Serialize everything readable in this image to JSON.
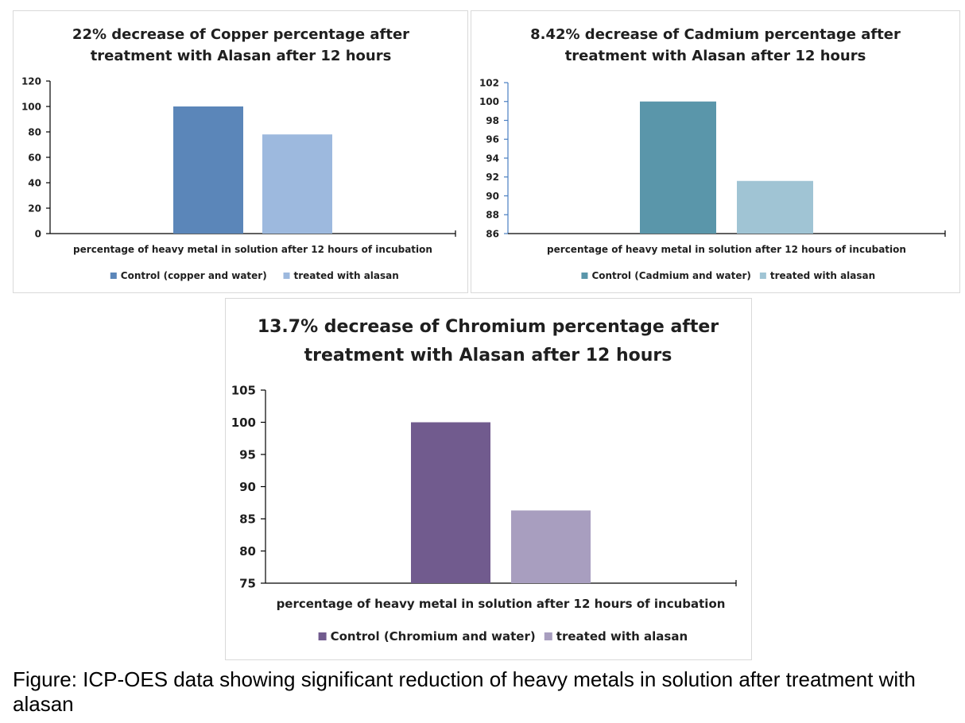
{
  "caption": "Figure: ICP-OES data showing significant reduction of heavy metals in solution after treatment with alasan",
  "chart_data": [
    {
      "type": "bar",
      "title": [
        "22% decrease of Copper percentage  after",
        "treatment with Alasan after 12 hours"
      ],
      "categories": [
        "percentage of heavy metal in solution after 12 hours of incubation"
      ],
      "series": [
        {
          "name": "Control (copper and water)",
          "values": [
            100
          ],
          "color": "#5b86b9"
        },
        {
          "name": "treated with alasan",
          "values": [
            78
          ],
          "color": "#9db9de"
        }
      ],
      "ylim": [
        0,
        120
      ],
      "yticks": [
        "0",
        "20",
        "40",
        "60",
        "80",
        "100",
        "120"
      ],
      "grid": false,
      "legend": "bottom"
    },
    {
      "type": "bar",
      "title": [
        "8.42% decrease of Cadmium percentage  after",
        "treatment with Alasan after 12 hours"
      ],
      "categories": [
        "percentage of heavy metal in solution after 12 hours of incubation"
      ],
      "series": [
        {
          "name": "Control (Cadmium and water)",
          "values": [
            100
          ],
          "color": "#5a96aa"
        },
        {
          "name": "treated with alasan",
          "values": [
            91.58
          ],
          "color": "#a0c4d4"
        }
      ],
      "ylim": [
        86,
        102
      ],
      "yticks": [
        "86",
        "88",
        "90",
        "92",
        "94",
        "96",
        "98",
        "100",
        "102"
      ],
      "grid": false,
      "legend": "bottom"
    },
    {
      "type": "bar",
      "title": [
        "13.7% decrease of Chromium percentage  after",
        "treatment with Alasan after 12 hours"
      ],
      "categories": [
        "percentage of heavy metal in solution after 12 hours of incubation"
      ],
      "series": [
        {
          "name": "Control (Chromium and water)",
          "values": [
            100
          ],
          "color": "#715b8e"
        },
        {
          "name": "treated with alasan",
          "values": [
            86.3
          ],
          "color": "#a89ebf"
        }
      ],
      "ylim": [
        75,
        105
      ],
      "yticks": [
        "75",
        "80",
        "85",
        "90",
        "95",
        "100",
        "105"
      ],
      "grid": false,
      "legend": "bottom"
    }
  ]
}
